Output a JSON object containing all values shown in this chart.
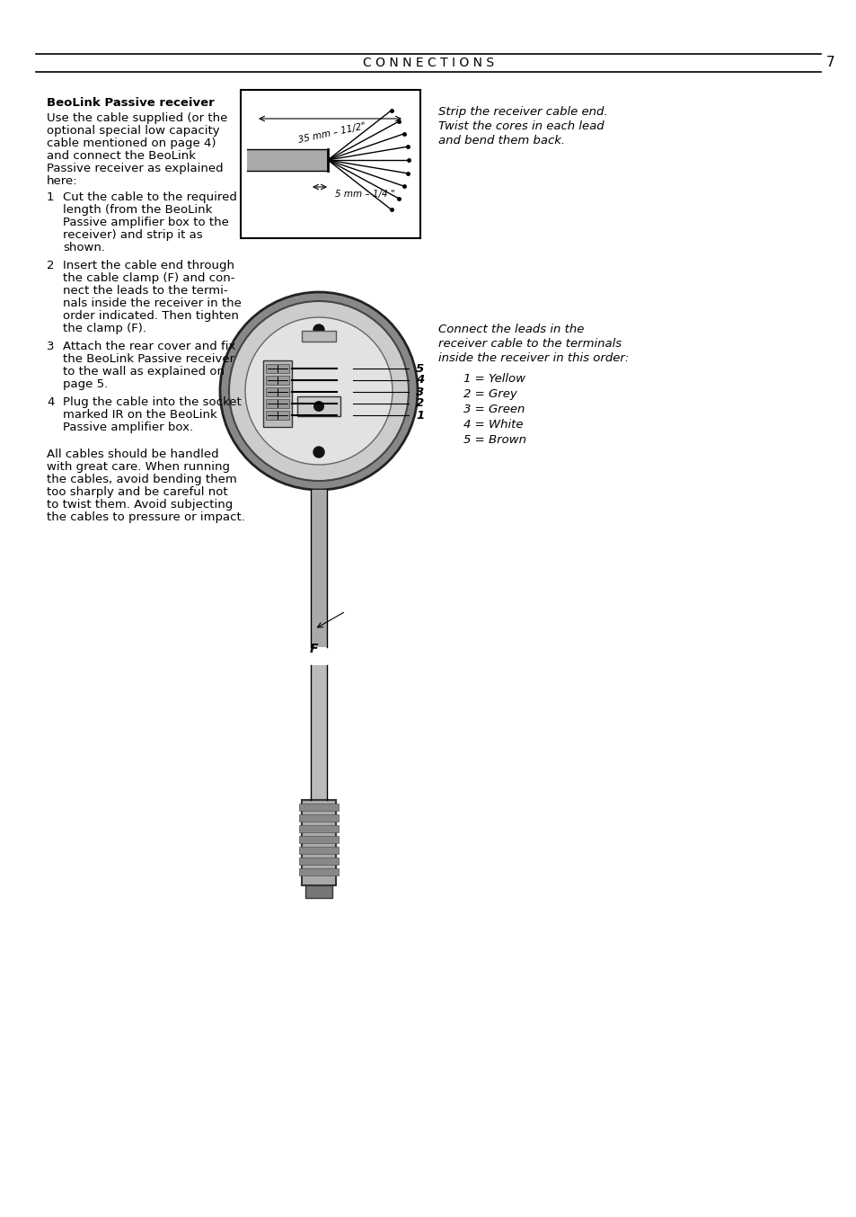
{
  "page_title": "C O N N E C T I O N S",
  "page_number": "7",
  "background_color": "#ffffff",
  "text_color": "#000000",
  "heading": "BeoLink Passive receiver",
  "para1_lines": [
    "Use the cable supplied (or the",
    "optional special low capacity",
    "cable mentioned on page 4)",
    "and connect the BeoLink",
    "Passive receiver as explained",
    "here:"
  ],
  "steps": [
    [
      "1",
      [
        "Cut the cable to the required",
        "length (from the BeoLink",
        "Passive amplifier box to the",
        "receiver) and strip it as",
        "shown."
      ]
    ],
    [
      "2",
      [
        "Insert the cable end through",
        "the cable clamp (F) and con-",
        "nect the leads to the termi-",
        "nals inside the receiver in the",
        "order indicated. Then tighten",
        "the clamp (F)."
      ]
    ],
    [
      "3",
      [
        "Attach the rear cover and fix",
        "the BeoLink Passive receiver",
        "to the wall as explained on",
        "page 5."
      ]
    ],
    [
      "4",
      [
        "Plug the cable into the socket",
        "marked IR on the BeoLink",
        "Passive amplifier box."
      ]
    ]
  ],
  "para2_lines": [
    "All cables should be handled",
    "with great care. When running",
    "the cables, avoid bending them",
    "too sharply and be careful not",
    "to twist them. Avoid subjecting",
    "the cables to pressure or impact."
  ],
  "caption1_lines": [
    "Strip the receiver cable end.",
    "Twist the cores in each lead",
    "and bend them back."
  ],
  "caption2_lines": [
    "Connect the leads in the",
    "receiver cable to the terminals",
    "inside the receiver in this order:"
  ],
  "wire_labels": [
    "1 = Yellow",
    "2 = Grey",
    "3 = Green",
    "4 = White",
    "5 = Brown"
  ],
  "dim1": "35 mm – 11/2\"",
  "dim2": "5 mm – 1/4 \"",
  "label_F": "F",
  "numbers": [
    "1",
    "2",
    "3",
    "4",
    "5"
  ]
}
